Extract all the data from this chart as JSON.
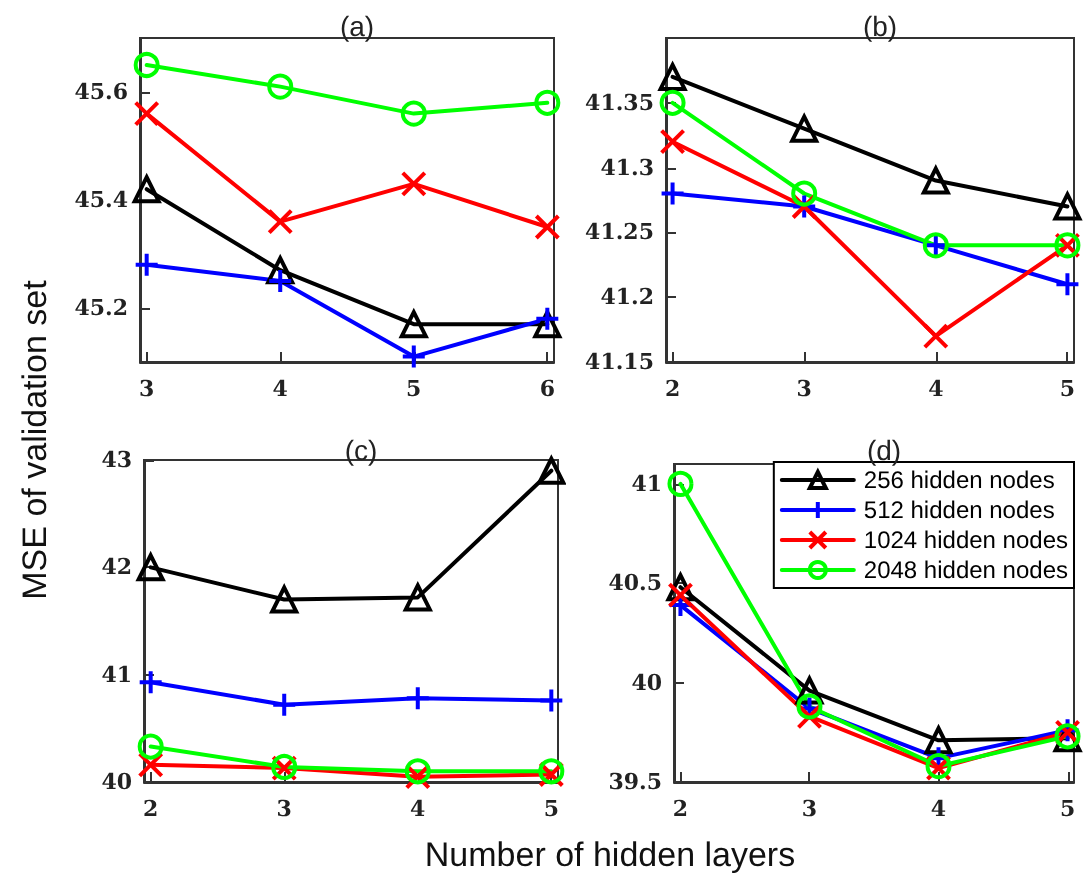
{
  "chart_data": [
    {
      "type": "line",
      "title": "(a)",
      "ylabel": "MSE of validation set",
      "x": [
        3,
        4,
        5,
        6
      ],
      "xlim": [
        2.95,
        6.05
      ],
      "xticks": [
        3,
        4,
        5,
        6
      ],
      "ylim": [
        45.1,
        45.7
      ],
      "yticks": [
        45.2,
        45.4,
        45.6
      ],
      "grid": false,
      "legend": false,
      "series": [
        {
          "color": "#000000",
          "marker": "triangle",
          "values": [
            45.42,
            45.27,
            45.17,
            45.17
          ]
        },
        {
          "color": "#0000ff",
          "marker": "plus",
          "values": [
            45.28,
            45.25,
            45.11,
            45.18
          ]
        },
        {
          "color": "#ff0000",
          "marker": "cross",
          "values": [
            45.56,
            45.36,
            45.43,
            45.35
          ]
        },
        {
          "color": "#00ff00",
          "marker": "circle",
          "values": [
            45.65,
            45.61,
            45.56,
            45.58
          ]
        }
      ]
    },
    {
      "type": "line",
      "title": "(b)",
      "x": [
        2,
        3,
        4,
        5
      ],
      "xlim": [
        1.95,
        5.05
      ],
      "xticks": [
        2,
        3,
        4,
        5
      ],
      "ylim": [
        41.15,
        41.4
      ],
      "yticks": [
        41.15,
        41.2,
        41.25,
        41.3,
        41.35
      ],
      "grid": false,
      "legend": false,
      "series": [
        {
          "color": "#000000",
          "marker": "triangle",
          "values": [
            41.37,
            41.33,
            41.29,
            41.27
          ]
        },
        {
          "color": "#0000ff",
          "marker": "plus",
          "values": [
            41.28,
            41.27,
            41.24,
            41.21
          ]
        },
        {
          "color": "#ff0000",
          "marker": "cross",
          "values": [
            41.32,
            41.27,
            41.17,
            41.24
          ]
        },
        {
          "color": "#00ff00",
          "marker": "circle",
          "values": [
            41.35,
            41.28,
            41.24,
            41.24
          ]
        }
      ]
    },
    {
      "type": "line",
      "title": "(c)",
      "xlabel": "Number of hidden layers",
      "x": [
        2,
        3,
        4,
        5
      ],
      "xlim": [
        1.95,
        5.05
      ],
      "xticks": [
        2,
        3,
        4,
        5
      ],
      "ylim": [
        40,
        43
      ],
      "yticks": [
        40,
        41,
        42,
        43
      ],
      "grid": false,
      "legend": false,
      "series": [
        {
          "color": "#000000",
          "marker": "triangle",
          "values": [
            42.0,
            41.7,
            41.72,
            42.9
          ]
        },
        {
          "color": "#0000ff",
          "marker": "plus",
          "values": [
            40.93,
            40.72,
            40.78,
            40.76
          ]
        },
        {
          "color": "#ff0000",
          "marker": "cross",
          "values": [
            40.16,
            40.13,
            40.05,
            40.07
          ]
        },
        {
          "color": "#00ff00",
          "marker": "circle",
          "values": [
            40.33,
            40.14,
            40.1,
            40.1
          ]
        }
      ]
    },
    {
      "type": "line",
      "title": "(d)",
      "x": [
        2,
        3,
        4,
        5
      ],
      "xlim": [
        1.95,
        5.05
      ],
      "xticks": [
        2,
        3,
        4,
        5
      ],
      "ylim": [
        39.5,
        41.1
      ],
      "yticks": [
        39.5,
        40,
        40.5,
        41
      ],
      "grid": false,
      "legend": "top right",
      "series": [
        {
          "name": "256 hidden nodes",
          "color": "#000000",
          "marker": "triangle",
          "values": [
            40.48,
            39.96,
            39.71,
            39.72
          ]
        },
        {
          "name": "512 hidden nodes",
          "color": "#0000ff",
          "marker": "plus",
          "values": [
            40.39,
            39.87,
            39.62,
            39.76
          ]
        },
        {
          "name": "1024 hidden nodes",
          "color": "#ff0000",
          "marker": "cross",
          "values": [
            40.44,
            39.83,
            39.57,
            39.75
          ]
        },
        {
          "name": "2048 hidden nodes",
          "color": "#00ff00",
          "marker": "circle",
          "values": [
            41.0,
            39.88,
            39.58,
            39.73
          ]
        }
      ]
    }
  ]
}
